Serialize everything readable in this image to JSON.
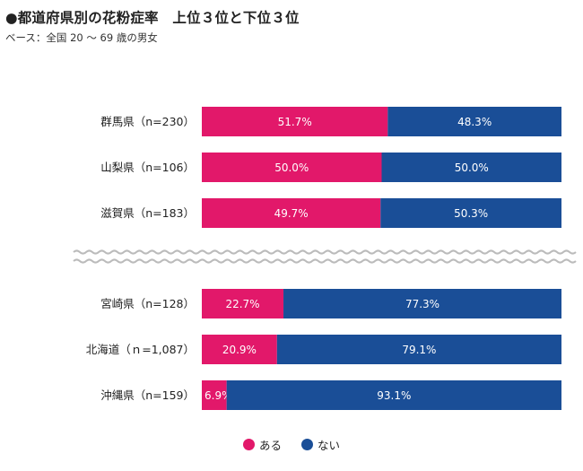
{
  "title": "●都道府県別の花粉症率　上位３位と下位３位",
  "subtitle": "ベース：全国 20 〜 69 歳の男女",
  "colors": {
    "aru": "#e2186a",
    "nai": "#1a4e97",
    "wave": "#bbbbbb"
  },
  "chart_data": {
    "type": "bar",
    "orientation": "horizontal",
    "stacked": "100%",
    "categories": [
      "群馬県（n=230）",
      "山梨県（n=106）",
      "滋賀県（n=183）",
      "宮崎県（n=128）",
      "北海道（ｎ=1,087）",
      "沖縄県（n=159）"
    ],
    "series": [
      {
        "name": "ある",
        "values": [
          51.7,
          50.0,
          49.7,
          22.7,
          20.9,
          6.9
        ]
      },
      {
        "name": "ない",
        "values": [
          48.3,
          50.0,
          50.3,
          77.3,
          79.1,
          93.1
        ]
      }
    ],
    "value_labels": {
      "ある": [
        "51.7%",
        "50.0%",
        "49.7%",
        "22.7%",
        "20.9%",
        "6.9%"
      ],
      "ない": [
        "48.3%",
        "50.0%",
        "50.3%",
        "77.3%",
        "79.1%",
        "93.1%"
      ]
    },
    "groups": [
      {
        "name": "上位3位",
        "rows": [
          0,
          1,
          2
        ]
      },
      {
        "name": "下位3位",
        "rows": [
          3,
          4,
          5
        ]
      }
    ],
    "xlim": [
      0,
      100
    ],
    "grid": false,
    "legend_position": "bottom-center",
    "separator": "wavy-line between groups"
  }
}
